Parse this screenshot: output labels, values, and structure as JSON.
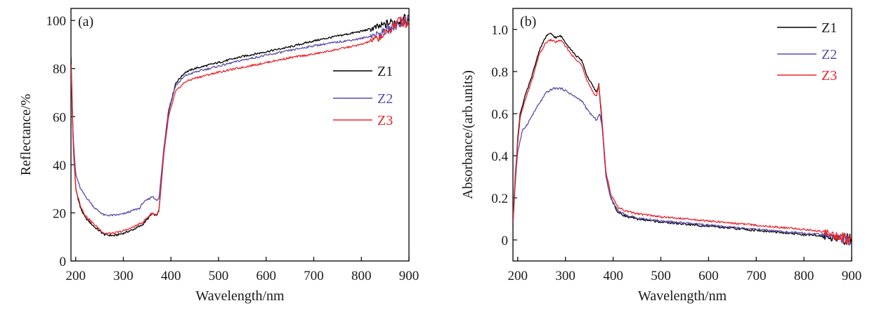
{
  "chart_data": [
    {
      "type": "line",
      "panel_label": "(a)",
      "xlabel": "Wavelength/nm",
      "ylabel": "Reflectance/%",
      "xlim": [
        190,
        900
      ],
      "ylim": [
        0,
        105
      ],
      "xticks": [
        200,
        300,
        400,
        500,
        600,
        700,
        800,
        900
      ],
      "yticks": [
        0,
        20,
        40,
        60,
        80,
        100
      ],
      "ytick_labels": [
        "0",
        "20",
        "40",
        "60",
        "80",
        "100"
      ],
      "legend_position": "right",
      "noise_from_x": 820,
      "series": [
        {
          "name": "Z1",
          "color": "#000000",
          "points": [
            [
              190,
              85
            ],
            [
              195,
              48
            ],
            [
              200,
              30
            ],
            [
              210,
              22
            ],
            [
              220,
              18
            ],
            [
              240,
              14
            ],
            [
              260,
              11
            ],
            [
              280,
              10.5
            ],
            [
              300,
              11.5
            ],
            [
              320,
              13
            ],
            [
              330,
              14
            ],
            [
              340,
              15
            ],
            [
              360,
              19.5
            ],
            [
              370,
              19
            ],
            [
              375,
              21
            ],
            [
              385,
              45
            ],
            [
              395,
              62
            ],
            [
              410,
              74
            ],
            [
              430,
              78.5
            ],
            [
              450,
              80
            ],
            [
              500,
              82.5
            ],
            [
              550,
              85
            ],
            [
              600,
              87
            ],
            [
              650,
              89
            ],
            [
              700,
              91.5
            ],
            [
              750,
              93.5
            ],
            [
              800,
              95.5
            ],
            [
              840,
              97.5
            ],
            [
              860,
              99
            ],
            [
              880,
              100
            ],
            [
              900,
              100
            ]
          ]
        },
        {
          "name": "Z2",
          "color": "#5c4ba8",
          "points": [
            [
              190,
              80
            ],
            [
              195,
              50
            ],
            [
              200,
              36
            ],
            [
              210,
              30
            ],
            [
              220,
              27
            ],
            [
              240,
              22
            ],
            [
              260,
              19
            ],
            [
              280,
              19
            ],
            [
              300,
              19.5
            ],
            [
              320,
              21
            ],
            [
              335,
              22
            ],
            [
              340,
              24
            ],
            [
              355,
              26
            ],
            [
              362,
              27
            ],
            [
              370,
              25
            ],
            [
              375,
              26
            ],
            [
              385,
              47
            ],
            [
              395,
              63
            ],
            [
              410,
              73
            ],
            [
              430,
              77
            ],
            [
              450,
              78.5
            ],
            [
              500,
              81
            ],
            [
              550,
              83.5
            ],
            [
              600,
              85.5
            ],
            [
              650,
              87.5
            ],
            [
              700,
              89.5
            ],
            [
              750,
              91
            ],
            [
              800,
              92.5
            ],
            [
              840,
              94.5
            ],
            [
              860,
              96.5
            ],
            [
              880,
              99
            ],
            [
              900,
              100
            ]
          ]
        },
        {
          "name": "Z3",
          "color": "#e8262c",
          "points": [
            [
              190,
              82
            ],
            [
              195,
              46
            ],
            [
              200,
              30
            ],
            [
              210,
              23
            ],
            [
              220,
              19
            ],
            [
              240,
              15
            ],
            [
              260,
              11.5
            ],
            [
              280,
              11.5
            ],
            [
              300,
              12.5
            ],
            [
              320,
              14
            ],
            [
              330,
              15
            ],
            [
              340,
              16
            ],
            [
              360,
              20
            ],
            [
              370,
              19
            ],
            [
              375,
              21
            ],
            [
              385,
              44
            ],
            [
              395,
              60
            ],
            [
              410,
              70.5
            ],
            [
              430,
              74.5
            ],
            [
              450,
              76
            ],
            [
              500,
              78.5
            ],
            [
              550,
              80.5
            ],
            [
              600,
              82.5
            ],
            [
              650,
              84.5
            ],
            [
              700,
              86
            ],
            [
              750,
              88
            ],
            [
              800,
              90
            ],
            [
              840,
              93
            ],
            [
              860,
              96
            ],
            [
              880,
              100
            ],
            [
              900,
              99
            ]
          ]
        }
      ]
    },
    {
      "type": "line",
      "panel_label": "(b)",
      "xlabel": "Wavelength/nm",
      "ylabel": "Absorbance/(arb.units)",
      "xlim": [
        190,
        900
      ],
      "ylim": [
        -0.1,
        1.1
      ],
      "xticks": [
        200,
        300,
        400,
        500,
        600,
        700,
        800,
        900
      ],
      "yticks": [
        0,
        0.2,
        0.4,
        0.6,
        0.8,
        1.0
      ],
      "ytick_labels": [
        "0",
        "0.2",
        "0.4",
        "0.6",
        "0.8",
        "1.0"
      ],
      "legend_position": "top-right",
      "noise_from_x": 840,
      "series": [
        {
          "name": "Z1",
          "color": "#000000",
          "points": [
            [
              190,
              0.07
            ],
            [
              195,
              0.3
            ],
            [
              200,
              0.48
            ],
            [
              205,
              0.6
            ],
            [
              215,
              0.68
            ],
            [
              230,
              0.78
            ],
            [
              245,
              0.9
            ],
            [
              260,
              0.97
            ],
            [
              270,
              0.98
            ],
            [
              280,
              0.96
            ],
            [
              290,
              0.97
            ],
            [
              300,
              0.94
            ],
            [
              320,
              0.88
            ],
            [
              335,
              0.85
            ],
            [
              345,
              0.78
            ],
            [
              360,
              0.72
            ],
            [
              365,
              0.7
            ],
            [
              370,
              0.74
            ],
            [
              375,
              0.6
            ],
            [
              385,
              0.3
            ],
            [
              395,
              0.2
            ],
            [
              410,
              0.13
            ],
            [
              430,
              0.11
            ],
            [
              450,
              0.1
            ],
            [
              500,
              0.085
            ],
            [
              550,
              0.075
            ],
            [
              600,
              0.065
            ],
            [
              650,
              0.055
            ],
            [
              700,
              0.045
            ],
            [
              750,
              0.035
            ],
            [
              800,
              0.025
            ],
            [
              840,
              0.018
            ],
            [
              860,
              0.012
            ],
            [
              880,
              0.005
            ],
            [
              900,
              0.0
            ]
          ]
        },
        {
          "name": "Z2",
          "color": "#5c4ba8",
          "points": [
            [
              190,
              0.07
            ],
            [
              195,
              0.28
            ],
            [
              200,
              0.42
            ],
            [
              210,
              0.52
            ],
            [
              220,
              0.55
            ],
            [
              240,
              0.63
            ],
            [
              260,
              0.7
            ],
            [
              275,
              0.72
            ],
            [
              290,
              0.72
            ],
            [
              300,
              0.71
            ],
            [
              320,
              0.68
            ],
            [
              335,
              0.66
            ],
            [
              345,
              0.62
            ],
            [
              360,
              0.58
            ],
            [
              365,
              0.57
            ],
            [
              372,
              0.6
            ],
            [
              378,
              0.52
            ],
            [
              385,
              0.3
            ],
            [
              395,
              0.2
            ],
            [
              410,
              0.14
            ],
            [
              430,
              0.115
            ],
            [
              450,
              0.105
            ],
            [
              500,
              0.09
            ],
            [
              550,
              0.08
            ],
            [
              600,
              0.07
            ],
            [
              650,
              0.06
            ],
            [
              700,
              0.05
            ],
            [
              750,
              0.04
            ],
            [
              800,
              0.032
            ],
            [
              840,
              0.025
            ],
            [
              860,
              0.018
            ],
            [
              880,
              0.008
            ],
            [
              900,
              0.0
            ]
          ]
        },
        {
          "name": "Z3",
          "color": "#e8262c",
          "points": [
            [
              190,
              0.08
            ],
            [
              195,
              0.32
            ],
            [
              200,
              0.46
            ],
            [
              205,
              0.58
            ],
            [
              215,
              0.66
            ],
            [
              230,
              0.76
            ],
            [
              245,
              0.88
            ],
            [
              260,
              0.94
            ],
            [
              270,
              0.95
            ],
            [
              280,
              0.94
            ],
            [
              290,
              0.95
            ],
            [
              300,
              0.92
            ],
            [
              320,
              0.86
            ],
            [
              335,
              0.83
            ],
            [
              345,
              0.76
            ],
            [
              360,
              0.69
            ],
            [
              365,
              0.68
            ],
            [
              370,
              0.74
            ],
            [
              375,
              0.62
            ],
            [
              385,
              0.32
            ],
            [
              395,
              0.22
            ],
            [
              410,
              0.155
            ],
            [
              430,
              0.135
            ],
            [
              450,
              0.125
            ],
            [
              500,
              0.11
            ],
            [
              550,
              0.1
            ],
            [
              600,
              0.09
            ],
            [
              650,
              0.08
            ],
            [
              700,
              0.07
            ],
            [
              750,
              0.06
            ],
            [
              800,
              0.05
            ],
            [
              840,
              0.04
            ],
            [
              860,
              0.025
            ],
            [
              880,
              0.01
            ],
            [
              900,
              0.0
            ]
          ]
        }
      ]
    }
  ]
}
